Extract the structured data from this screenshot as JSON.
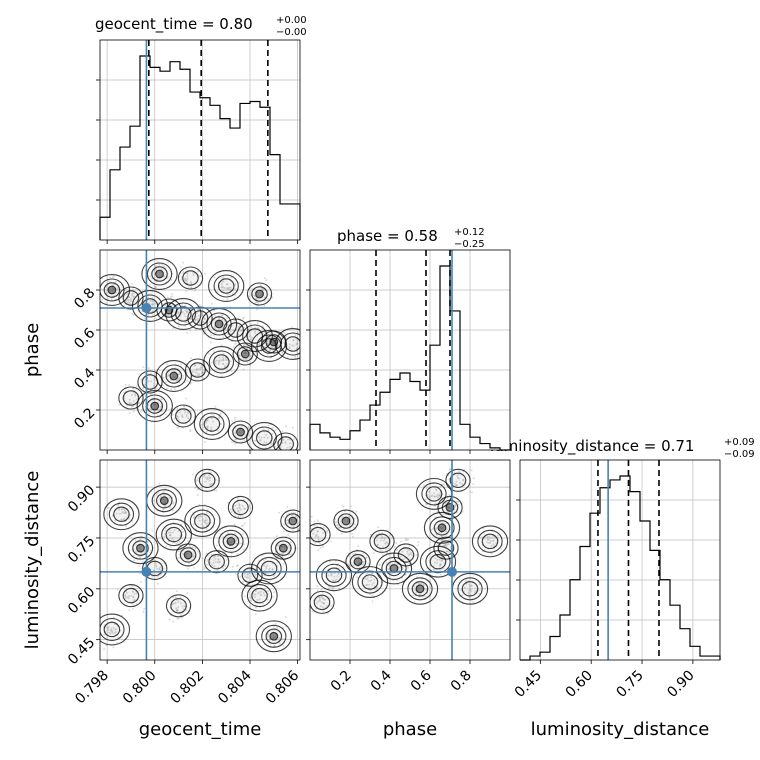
{
  "figure": {
    "type": "corner",
    "parameters": [
      "geocent_time",
      "phase",
      "luminosity_distance"
    ]
  },
  "chart_data": [
    {
      "type": "histogram",
      "parameter": "geocent_time",
      "title": {
        "name": "geocent_time",
        "median": "0.80",
        "plus": "+0.00",
        "minus": "−0.00"
      },
      "xlabel": "geocent_time",
      "xlim": [
        0.7977,
        0.8061
      ],
      "xticks": [
        "0.798",
        "0.800",
        "0.802",
        "0.804",
        "0.806"
      ],
      "xtick_values": [
        0.798,
        0.8,
        0.802,
        0.804,
        0.806
      ],
      "bin_edges": [
        0.7977,
        0.79812,
        0.79854,
        0.79896,
        0.79938,
        0.7998,
        0.80022,
        0.80064,
        0.80106,
        0.80148,
        0.8019,
        0.80232,
        0.80274,
        0.80316,
        0.80358,
        0.804,
        0.80442,
        0.80484,
        0.80526,
        0.80568,
        0.8061
      ],
      "counts": [
        0.12,
        0.37,
        0.49,
        0.6,
        0.97,
        0.91,
        0.89,
        0.94,
        0.9,
        0.78,
        0.75,
        0.71,
        0.64,
        0.59,
        0.72,
        0.73,
        0.7,
        0.45,
        0.19,
        0.19
      ],
      "quantiles": [
        0.79975,
        0.80195,
        0.80475
      ],
      "truth": 0.79965,
      "grid": true
    },
    {
      "type": "histogram",
      "parameter": "phase",
      "title": {
        "name": "phase",
        "median": "0.58",
        "plus": "+0.12",
        "minus": "−0.25"
      },
      "xlabel": "phase",
      "xlim": [
        0.0,
        1.0
      ],
      "xticks": [
        "0.2",
        "0.4",
        "0.6",
        "0.8"
      ],
      "xtick_values": [
        0.2,
        0.4,
        0.6,
        0.8
      ],
      "bin_edges": [
        0.0,
        0.05,
        0.1,
        0.15,
        0.2,
        0.25,
        0.3,
        0.35,
        0.4,
        0.45,
        0.5,
        0.55,
        0.6,
        0.65,
        0.7,
        0.75,
        0.8,
        0.85,
        0.9,
        0.95,
        1.0
      ],
      "counts": [
        0.12,
        0.08,
        0.06,
        0.05,
        0.09,
        0.14,
        0.21,
        0.27,
        0.33,
        0.36,
        0.32,
        0.28,
        0.49,
        0.86,
        0.65,
        0.12,
        0.06,
        0.03,
        0.01,
        0.0
      ],
      "quantiles": [
        0.33,
        0.58,
        0.7
      ],
      "truth": 0.71,
      "grid": true
    },
    {
      "type": "histogram",
      "parameter": "luminosity_distance",
      "title": {
        "name": "luminosity_distance",
        "median": "0.71",
        "plus": "+0.09",
        "minus": "−0.09"
      },
      "xlabel": "luminosity_distance",
      "xlim": [
        0.39,
        0.98
      ],
      "xticks": [
        "0.45",
        "0.60",
        "0.75",
        "0.90"
      ],
      "xtick_values": [
        0.45,
        0.6,
        0.75,
        0.9
      ],
      "bin_edges": [
        0.39,
        0.4195,
        0.449,
        0.4785,
        0.508,
        0.5375,
        0.567,
        0.5965,
        0.626,
        0.6555,
        0.685,
        0.7145,
        0.744,
        0.7735,
        0.803,
        0.8325,
        0.862,
        0.8915,
        0.921,
        0.9505,
        0.98
      ],
      "counts": [
        0.0,
        0.02,
        0.04,
        0.12,
        0.23,
        0.41,
        0.58,
        0.75,
        0.88,
        0.92,
        0.94,
        0.86,
        0.71,
        0.56,
        0.41,
        0.28,
        0.16,
        0.07,
        0.02,
        0.02
      ],
      "quantiles": [
        0.62,
        0.71,
        0.8
      ],
      "truth": 0.65,
      "grid": true
    },
    {
      "type": "contour",
      "x_parameter": "geocent_time",
      "y_parameter": "phase",
      "ylabel": "phase",
      "xlim": [
        0.7977,
        0.8061
      ],
      "ylim": [
        0.0,
        1.0
      ],
      "yticks": [
        "0.2",
        "0.4",
        "0.6",
        "0.8"
      ],
      "ytick_values": [
        0.2,
        0.4,
        0.6,
        0.8
      ],
      "truth": {
        "x": 0.79965,
        "y": 0.71
      },
      "samples": [
        {
          "x": 0.7982,
          "y": 0.8
        },
        {
          "x": 0.799,
          "y": 0.76
        },
        {
          "x": 0.7998,
          "y": 0.72
        },
        {
          "x": 0.8006,
          "y": 0.7
        },
        {
          "x": 0.8012,
          "y": 0.68
        },
        {
          "x": 0.8019,
          "y": 0.66
        },
        {
          "x": 0.8027,
          "y": 0.63
        },
        {
          "x": 0.8034,
          "y": 0.6
        },
        {
          "x": 0.8042,
          "y": 0.57
        },
        {
          "x": 0.805,
          "y": 0.54
        },
        {
          "x": 0.8058,
          "y": 0.53
        },
        {
          "x": 0.7998,
          "y": 0.34
        },
        {
          "x": 0.8008,
          "y": 0.37
        },
        {
          "x": 0.8018,
          "y": 0.4
        },
        {
          "x": 0.8028,
          "y": 0.44
        },
        {
          "x": 0.8038,
          "y": 0.48
        },
        {
          "x": 0.8048,
          "y": 0.52
        },
        {
          "x": 0.799,
          "y": 0.26
        },
        {
          "x": 0.8,
          "y": 0.22
        },
        {
          "x": 0.8012,
          "y": 0.17
        },
        {
          "x": 0.8024,
          "y": 0.13
        },
        {
          "x": 0.8036,
          "y": 0.09
        },
        {
          "x": 0.8046,
          "y": 0.06
        },
        {
          "x": 0.8055,
          "y": 0.03
        },
        {
          "x": 0.8002,
          "y": 0.88
        },
        {
          "x": 0.8015,
          "y": 0.86
        },
        {
          "x": 0.803,
          "y": 0.82
        },
        {
          "x": 0.8044,
          "y": 0.78
        }
      ]
    },
    {
      "type": "contour",
      "x_parameter": "geocent_time",
      "y_parameter": "luminosity_distance",
      "ylabel": "luminosity_distance",
      "xlim": [
        0.7977,
        0.8061
      ],
      "ylim": [
        0.39,
        0.98
      ],
      "yticks": [
        "0.45",
        "0.60",
        "0.75",
        "0.90"
      ],
      "ytick_values": [
        0.45,
        0.6,
        0.75,
        0.9
      ],
      "truth": {
        "x": 0.79965,
        "y": 0.65
      },
      "samples": [
        {
          "x": 0.7994,
          "y": 0.72
        },
        {
          "x": 0.8,
          "y": 0.66
        },
        {
          "x": 0.8008,
          "y": 0.76
        },
        {
          "x": 0.8014,
          "y": 0.7
        },
        {
          "x": 0.802,
          "y": 0.8
        },
        {
          "x": 0.8026,
          "y": 0.68
        },
        {
          "x": 0.8032,
          "y": 0.74
        },
        {
          "x": 0.804,
          "y": 0.64
        },
        {
          "x": 0.8048,
          "y": 0.66
        },
        {
          "x": 0.8054,
          "y": 0.72
        },
        {
          "x": 0.7986,
          "y": 0.82
        },
        {
          "x": 0.799,
          "y": 0.58
        },
        {
          "x": 0.8004,
          "y": 0.86
        },
        {
          "x": 0.8036,
          "y": 0.84
        },
        {
          "x": 0.8044,
          "y": 0.58
        },
        {
          "x": 0.8058,
          "y": 0.8
        },
        {
          "x": 0.7982,
          "y": 0.48
        },
        {
          "x": 0.8022,
          "y": 0.92
        },
        {
          "x": 0.805,
          "y": 0.46
        },
        {
          "x": 0.801,
          "y": 0.55
        }
      ]
    },
    {
      "type": "contour",
      "x_parameter": "phase",
      "y_parameter": "luminosity_distance",
      "xlim": [
        0.0,
        1.0
      ],
      "ylim": [
        0.39,
        0.98
      ],
      "truth": {
        "x": 0.71,
        "y": 0.65
      },
      "samples": [
        {
          "x": 0.66,
          "y": 0.78
        },
        {
          "x": 0.68,
          "y": 0.72
        },
        {
          "x": 0.64,
          "y": 0.68
        },
        {
          "x": 0.7,
          "y": 0.84
        },
        {
          "x": 0.62,
          "y": 0.88
        },
        {
          "x": 0.48,
          "y": 0.7
        },
        {
          "x": 0.42,
          "y": 0.66
        },
        {
          "x": 0.36,
          "y": 0.74
        },
        {
          "x": 0.3,
          "y": 0.62
        },
        {
          "x": 0.24,
          "y": 0.68
        },
        {
          "x": 0.12,
          "y": 0.64
        },
        {
          "x": 0.06,
          "y": 0.56
        },
        {
          "x": 0.55,
          "y": 0.6
        },
        {
          "x": 0.74,
          "y": 0.92
        },
        {
          "x": 0.8,
          "y": 0.6
        },
        {
          "x": 0.18,
          "y": 0.8
        },
        {
          "x": 0.9,
          "y": 0.74
        },
        {
          "x": 0.04,
          "y": 0.76
        }
      ]
    }
  ],
  "colors": {
    "line": "#000000",
    "truth": "#4682b4",
    "grid": "#bbbbbb",
    "sample": "#9a9a9a"
  }
}
